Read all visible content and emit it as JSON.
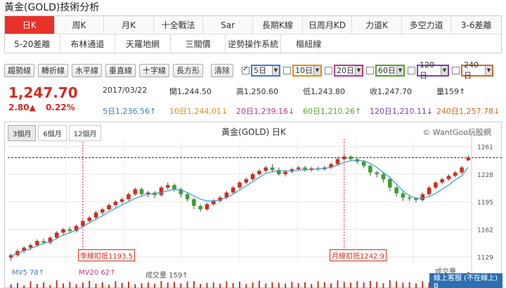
{
  "page": {
    "title": "黃金(GOLD)技術分析"
  },
  "tabs_row1": [
    "日K",
    "周K",
    "月K",
    "十全戰法",
    "Sar",
    "長期K線",
    "日周月KD",
    "力道K",
    "多空力道",
    "3-6差離"
  ],
  "tabs_row2": [
    "5-20差離",
    "布林通道",
    "天羅地網",
    "三關價",
    "逆勢操作系統",
    "樞紐線"
  ],
  "tools": [
    "趨勢線",
    "轉折線",
    "水平線",
    "垂直線",
    "十字線",
    "長方形"
  ],
  "clear_label": "清除",
  "ma_selects": [
    {
      "value": "5日",
      "color": "#3a7fc8",
      "checked": true
    },
    {
      "value": "10日",
      "color": "#e58a17",
      "checked": false
    },
    {
      "value": "20日",
      "color": "#c0378c",
      "checked": false
    },
    {
      "value": "60日",
      "color": "#5aa02c",
      "checked": false
    },
    {
      "value": "120日",
      "color": "#7a3fb0",
      "checked": false
    },
    {
      "value": "240日",
      "color": "#d0682a",
      "checked": false
    }
  ],
  "quote": {
    "price": "1,247.70",
    "change": "2.80▲",
    "change_pct": "0.22%",
    "date": "2017/03/22",
    "open_label": "開",
    "open": "1,244.50",
    "high_label": "高",
    "high": "1,250.60",
    "low_label": "低",
    "low": "1,243.80",
    "close_label": "收",
    "close": "1,247.70",
    "vol_label": "量",
    "vol": "159↑",
    "ma": [
      {
        "label": "5日",
        "value": "1,236.56↑",
        "color": "#3a7fc8"
      },
      {
        "label": "10日",
        "value": "1,244.01↓",
        "color": "#e58a17"
      },
      {
        "label": "20日",
        "value": "1,239.16↓",
        "color": "#c0378c"
      },
      {
        "label": "60日",
        "value": "1,210.26↑",
        "color": "#5aa02c"
      },
      {
        "label": "120日",
        "value": "1,210.11↓",
        "color": "#7a3fb0"
      },
      {
        "label": "240日",
        "value": "1,257.78↓",
        "color": "#d0682a"
      }
    ]
  },
  "chart": {
    "periods": [
      "3個月",
      "6個月",
      "12個月"
    ],
    "title": "黃金(GOLD) 日K",
    "copyright": "© WantGoo玩股網",
    "season_mark": "季線扣抵1193.5",
    "month_mark": "月線扣抵1242.9",
    "vol_mv5": "MV5 78↑",
    "vol_mv20": "MV20 62↑",
    "vol_label": "成交量 159↑",
    "vol_axis_label": "成交量",
    "service": "線上客服 (不在線上) B"
  },
  "chart_data": {
    "type": "candlestick",
    "title": "黃金(GOLD) 日K",
    "y_ticks": [
      1129,
      1162,
      1195,
      1228,
      1261
    ],
    "ylim": [
      1122,
      1270
    ],
    "last_close_line": 1247.7,
    "candles": [
      [
        1128,
        1131,
        1124,
        1133
      ],
      [
        1131,
        1136,
        1129,
        1138
      ],
      [
        1136,
        1140,
        1134,
        1142
      ],
      [
        1140,
        1143,
        1137,
        1145
      ],
      [
        1143,
        1148,
        1141,
        1150
      ],
      [
        1148,
        1146,
        1144,
        1151
      ],
      [
        1146,
        1152,
        1144,
        1154
      ],
      [
        1152,
        1158,
        1150,
        1160
      ],
      [
        1158,
        1162,
        1155,
        1164
      ],
      [
        1162,
        1160,
        1157,
        1165
      ],
      [
        1160,
        1166,
        1158,
        1168
      ],
      [
        1166,
        1172,
        1164,
        1174
      ],
      [
        1172,
        1176,
        1169,
        1178
      ],
      [
        1176,
        1182,
        1174,
        1184
      ],
      [
        1182,
        1186,
        1179,
        1188
      ],
      [
        1186,
        1191,
        1184,
        1193
      ],
      [
        1191,
        1195,
        1188,
        1197
      ],
      [
        1195,
        1198,
        1192,
        1200
      ],
      [
        1198,
        1204,
        1196,
        1206
      ],
      [
        1204,
        1210,
        1202,
        1212
      ],
      [
        1210,
        1204,
        1201,
        1212
      ],
      [
        1204,
        1206,
        1200,
        1208
      ],
      [
        1206,
        1203,
        1199,
        1208
      ],
      [
        1203,
        1212,
        1201,
        1214
      ],
      [
        1212,
        1215,
        1209,
        1218
      ],
      [
        1215,
        1210,
        1207,
        1217
      ],
      [
        1210,
        1204,
        1200,
        1212
      ],
      [
        1204,
        1198,
        1195,
        1206
      ],
      [
        1198,
        1190,
        1186,
        1200
      ],
      [
        1190,
        1186,
        1183,
        1192
      ],
      [
        1186,
        1192,
        1184,
        1194
      ],
      [
        1192,
        1196,
        1190,
        1198
      ],
      [
        1196,
        1200,
        1194,
        1202
      ],
      [
        1200,
        1206,
        1198,
        1208
      ],
      [
        1206,
        1212,
        1204,
        1214
      ],
      [
        1212,
        1218,
        1210,
        1220
      ],
      [
        1218,
        1222,
        1216,
        1224
      ],
      [
        1222,
        1228,
        1220,
        1230
      ],
      [
        1228,
        1232,
        1226,
        1234
      ],
      [
        1232,
        1236,
        1230,
        1238
      ],
      [
        1236,
        1233,
        1230,
        1240
      ],
      [
        1233,
        1228,
        1226,
        1236
      ],
      [
        1228,
        1231,
        1225,
        1233
      ],
      [
        1231,
        1234,
        1229,
        1236
      ],
      [
        1234,
        1236,
        1232,
        1238
      ],
      [
        1236,
        1233,
        1231,
        1238
      ],
      [
        1233,
        1235,
        1231,
        1237
      ],
      [
        1235,
        1234,
        1232,
        1237
      ],
      [
        1234,
        1236,
        1232,
        1238
      ],
      [
        1236,
        1240,
        1234,
        1242
      ],
      [
        1240,
        1246,
        1238,
        1248
      ],
      [
        1246,
        1249,
        1244,
        1252
      ],
      [
        1249,
        1246,
        1244,
        1251
      ],
      [
        1246,
        1243,
        1240,
        1248
      ],
      [
        1243,
        1238,
        1235,
        1245
      ],
      [
        1238,
        1230,
        1226,
        1240
      ],
      [
        1230,
        1228,
        1224,
        1232
      ],
      [
        1228,
        1222,
        1218,
        1230
      ],
      [
        1222,
        1212,
        1208,
        1224
      ],
      [
        1212,
        1205,
        1201,
        1214
      ],
      [
        1205,
        1200,
        1196,
        1207
      ],
      [
        1200,
        1199,
        1196,
        1203
      ],
      [
        1199,
        1197,
        1194,
        1201
      ],
      [
        1197,
        1204,
        1195,
        1206
      ],
      [
        1204,
        1212,
        1202,
        1214
      ],
      [
        1212,
        1218,
        1210,
        1220
      ],
      [
        1218,
        1222,
        1216,
        1224
      ],
      [
        1222,
        1226,
        1220,
        1228
      ],
      [
        1226,
        1230,
        1224,
        1232
      ],
      [
        1230,
        1236,
        1228,
        1238
      ],
      [
        1244.5,
        1247.7,
        1243.8,
        1250.6
      ]
    ],
    "ma5": [
      1130,
      1133,
      1136,
      1139,
      1142,
      1145,
      1147,
      1151,
      1155,
      1158,
      1161,
      1165,
      1170,
      1174,
      1178,
      1183,
      1187,
      1191,
      1195,
      1199,
      1202,
      1204,
      1205,
      1206,
      1208,
      1210,
      1209,
      1206,
      1202,
      1198,
      1196,
      1196,
      1197,
      1200,
      1204,
      1209,
      1214,
      1219,
      1224,
      1229,
      1231,
      1232,
      1232,
      1232,
      1233,
      1233,
      1234,
      1234,
      1235,
      1236,
      1239,
      1242,
      1244,
      1245,
      1244,
      1241,
      1236,
      1230,
      1224,
      1216,
      1208,
      1202,
      1199,
      1199,
      1201,
      1205,
      1210,
      1215,
      1221,
      1226,
      1236.56
    ],
    "volumes": [
      40,
      55,
      30,
      70,
      45,
      60,
      35,
      80,
      50,
      65,
      42,
      58,
      75,
      48,
      62,
      38,
      70,
      55,
      66,
      44,
      52,
      60,
      47,
      73,
      58,
      64,
      50,
      68,
      72,
      45,
      56,
      61,
      48,
      70,
      53,
      66,
      44,
      59,
      75,
      50,
      62,
      57,
      48,
      66,
      54,
      60,
      45,
      70,
      63,
      52,
      78,
      65,
      58,
      71,
      60,
      74,
      66,
      52,
      80,
      69,
      57,
      62,
      49,
      71,
      60,
      68,
      55,
      73,
      64,
      70,
      159
    ]
  }
}
